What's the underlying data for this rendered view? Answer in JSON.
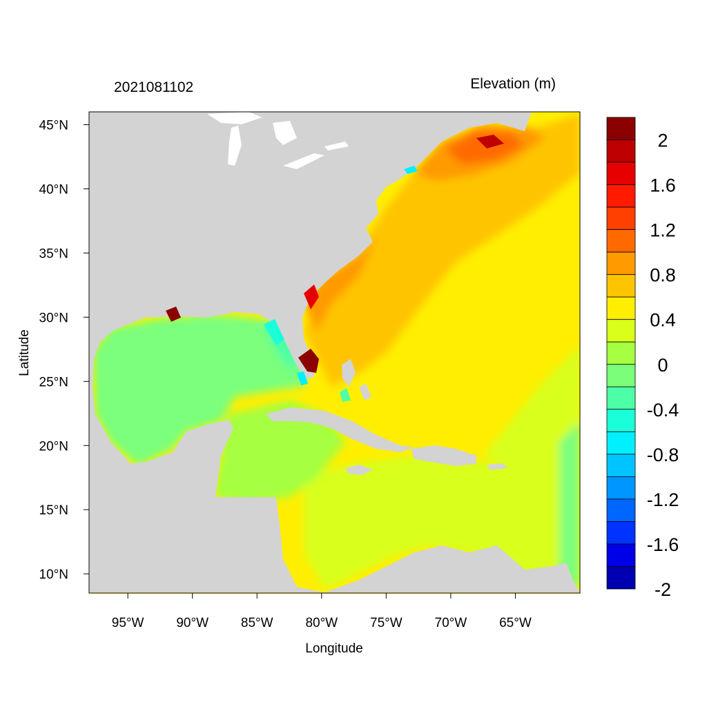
{
  "header": {
    "date_label": "2021081102",
    "variable_label": "Elevation (m)"
  },
  "axes": {
    "xlabel": "Longitude",
    "ylabel": "Latitude",
    "lon_range": [
      -98,
      -60
    ],
    "lat_range": [
      8.5,
      46
    ],
    "x_ticks": [
      {
        "value": -95,
        "label": "95°W"
      },
      {
        "value": -90,
        "label": "90°W"
      },
      {
        "value": -85,
        "label": "85°W"
      },
      {
        "value": -80,
        "label": "80°W"
      },
      {
        "value": -75,
        "label": "75°W"
      },
      {
        "value": -70,
        "label": "70°W"
      },
      {
        "value": -65,
        "label": "65°W"
      }
    ],
    "y_ticks": [
      {
        "value": 45,
        "label": "45°N"
      },
      {
        "value": 40,
        "label": "40°N"
      },
      {
        "value": 35,
        "label": "35°N"
      },
      {
        "value": 30,
        "label": "30°N"
      },
      {
        "value": 25,
        "label": "25°N"
      },
      {
        "value": 20,
        "label": "20°N"
      },
      {
        "value": 15,
        "label": "15°N"
      },
      {
        "value": 10,
        "label": "10°N"
      }
    ]
  },
  "colorbar": {
    "colors_top_to_bottom": [
      "#8b0000",
      "#bf0000",
      "#e60000",
      "#ff1a00",
      "#ff4000",
      "#ff6a00",
      "#ff9a00",
      "#ffc400",
      "#ffee00",
      "#d9ff1a",
      "#a6ff40",
      "#7bff7b",
      "#4dffa6",
      "#1affd9",
      "#00f0ff",
      "#00c4ff",
      "#0096ff",
      "#0066ff",
      "#0033ff",
      "#0000e6",
      "#0000b3"
    ],
    "labels_top_to_bottom": [
      "2",
      "1.6",
      "1.2",
      "0.8",
      "0.4",
      "0",
      "-0.4",
      "-0.8",
      "-1.2",
      "-1.6",
      "-2"
    ]
  },
  "colors": {
    "land": "#d3d3d3",
    "frame": "#000000"
  }
}
